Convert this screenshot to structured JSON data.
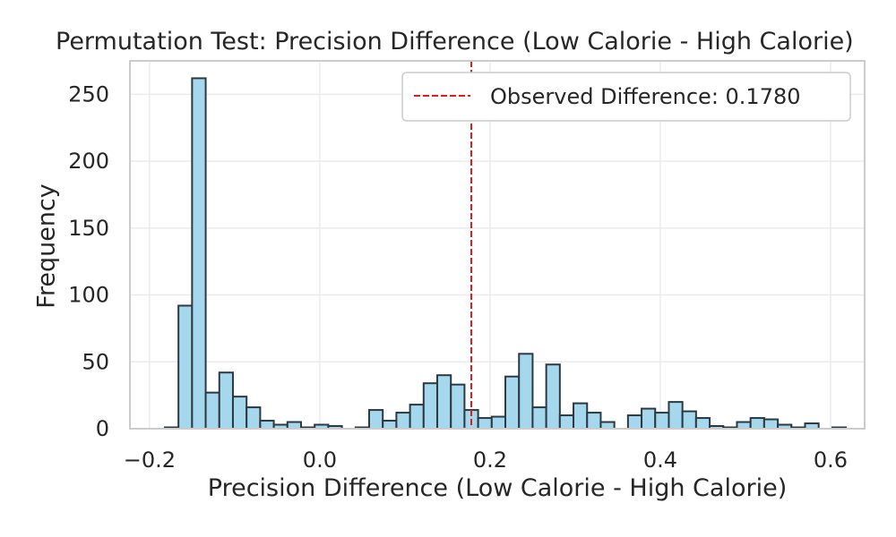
{
  "chart_data": {
    "type": "bar",
    "title": "Permutation Test: Precision Difference (Low Calorie - High Calorie)",
    "xlabel": "Precision Difference (Low Calorie - High Calorie)",
    "ylabel": "Frequency",
    "xlim": [
      -0.223,
      0.64
    ],
    "ylim": [
      0,
      275
    ],
    "xticks": [
      -0.2,
      0.0,
      0.2,
      0.4,
      0.6
    ],
    "xtick_labels": [
      "−0.2",
      "0.0",
      "0.2",
      "0.4",
      "0.6"
    ],
    "yticks": [
      0,
      50,
      100,
      150,
      200,
      250
    ],
    "grid": true,
    "bar_color": "#a6d8ed",
    "edge_color": "#2b3a42",
    "bin_start": -0.182,
    "bin_width": 0.016,
    "counts": [
      1,
      92,
      262,
      27,
      42,
      24,
      16,
      6,
      3,
      5,
      1,
      3,
      2,
      0,
      1,
      14,
      6,
      12,
      18,
      34,
      40,
      33,
      14,
      8,
      9,
      39,
      56,
      16,
      48,
      10,
      19,
      12,
      5,
      0,
      10,
      15,
      12,
      20,
      13,
      8,
      2,
      1,
      5,
      8,
      7,
      3,
      1,
      4,
      0,
      1
    ],
    "observed_difference": 0.178,
    "observed_line_color": "#e41a1c",
    "legend": {
      "label": "Observed Difference: 0.1780",
      "placement": "upper right"
    }
  }
}
